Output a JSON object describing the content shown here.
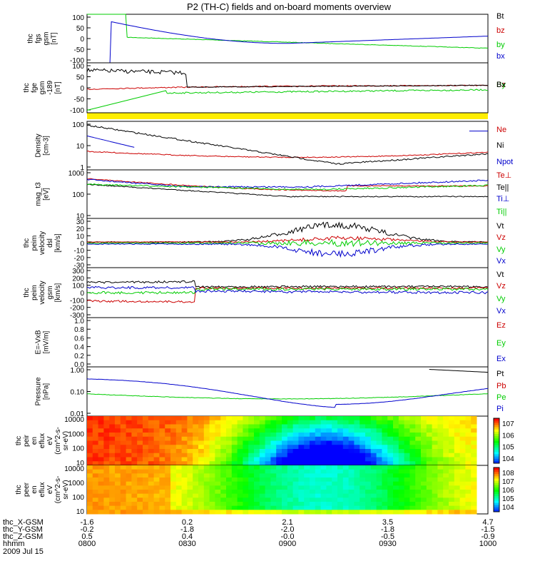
{
  "title": "P2 (TH-C) fields and on-board moments overview",
  "date_label": "2009 Jul 15",
  "colors": {
    "black": "#000000",
    "red": "#cc0000",
    "green": "#00cc00",
    "blue": "#0000cc",
    "yellow": "#ffee00"
  },
  "chart_data": [
    {
      "type": "line",
      "id": "fgs",
      "ylabel_lines": [
        "thc",
        "fgs",
        "gsm",
        "[nT]"
      ],
      "yticks": [
        "100",
        "50",
        "0",
        "-50",
        "-100"
      ],
      "ylim": [
        -100,
        100
      ],
      "series": [
        {
          "name": "Bt",
          "color": "black"
        },
        {
          "name": "bz",
          "color": "red"
        },
        {
          "name": "by",
          "color": "green"
        },
        {
          "name": "bx",
          "color": "blue"
        }
      ]
    },
    {
      "type": "line",
      "id": "fgs-hi",
      "ylabel_lines": [
        "thc",
        "fge",
        "gsm",
        "-189",
        "[nT]"
      ],
      "yticks": [
        "100",
        "50",
        "0",
        "-50",
        "-100"
      ],
      "ylim": [
        -125,
        100
      ],
      "series": [
        {
          "name": "Bz",
          "color": "red"
        },
        {
          "name": "By",
          "color": "green"
        },
        {
          "name": "Bx",
          "color": "black"
        }
      ]
    },
    {
      "type": "line",
      "id": "density",
      "ylabel_lines": [
        "Density",
        "[cm-3]"
      ],
      "yticks": [
        "100",
        "10",
        "1"
      ],
      "ylim": [
        0.3,
        200
      ],
      "log": true,
      "series": [
        {
          "name": "Ne",
          "color": "red"
        },
        {
          "name": "Ni",
          "color": "black"
        },
        {
          "name": "Npot",
          "color": "blue"
        }
      ]
    },
    {
      "type": "line",
      "id": "temp",
      "ylabel_lines": [
        "mag_t3",
        "[eV]"
      ],
      "yticks": [
        "1000",
        "100",
        "10"
      ],
      "ylim": [
        10,
        1500
      ],
      "log": true,
      "series": [
        {
          "name": "Te⊥",
          "color": "red"
        },
        {
          "name": "Te||",
          "color": "black"
        },
        {
          "name": "Ti⊥",
          "color": "blue"
        },
        {
          "name": "Ti||",
          "color": "green"
        }
      ]
    },
    {
      "type": "line",
      "id": "vel-dsl",
      "ylabel_lines": [
        "thc",
        "peim",
        "velocity",
        "dsl",
        "[km/s]"
      ],
      "yticks": [
        "30",
        "20",
        "10",
        "0",
        "-10",
        "-20",
        "-30"
      ],
      "ylim": [
        -30,
        30
      ],
      "series": [
        {
          "name": "Vt",
          "color": "black"
        },
        {
          "name": "Vz",
          "color": "red"
        },
        {
          "name": "Vy",
          "color": "green"
        },
        {
          "name": "Vx",
          "color": "blue"
        }
      ]
    },
    {
      "type": "line",
      "id": "vel-gsm",
      "ylabel_lines": [
        "thc",
        "peim",
        "velocity",
        "gsm",
        "[km/s]"
      ],
      "yticks": [
        "300",
        "200",
        "100",
        "0",
        "-100",
        "-200",
        "-300"
      ],
      "ylim": [
        -300,
        300
      ],
      "series": [
        {
          "name": "Vt",
          "color": "black"
        },
        {
          "name": "Vz",
          "color": "red"
        },
        {
          "name": "Vy",
          "color": "green"
        },
        {
          "name": "Vx",
          "color": "blue"
        }
      ]
    },
    {
      "type": "line",
      "id": "efield",
      "ylabel_lines": [
        "E=-VxB",
        "[mV/m]"
      ],
      "yticks": [
        "1.0",
        "0.8",
        "0.6",
        "0.4",
        "0.2",
        "0.0"
      ],
      "ylim": [
        0,
        1
      ],
      "series": [
        {
          "name": "Ez",
          "color": "red"
        },
        {
          "name": "Ey",
          "color": "green"
        },
        {
          "name": "Ex",
          "color": "blue"
        }
      ]
    },
    {
      "type": "line",
      "id": "pressure",
      "ylabel_lines": [
        "Pressure",
        "[nPa]"
      ],
      "yticks": [
        "1.00",
        "0.10",
        "0.01"
      ],
      "ylim": [
        0.005,
        6
      ],
      "log": true,
      "series": [
        {
          "name": "Pt",
          "color": "black"
        },
        {
          "name": "Pb",
          "color": "red"
        },
        {
          "name": "Pe",
          "color": "green"
        },
        {
          "name": "Pi",
          "color": "blue"
        }
      ]
    },
    {
      "type": "heatmap",
      "id": "peir",
      "ylabel_lines": [
        "thc",
        "peir",
        "en",
        "eflux",
        "eV",
        "(cm^2-s-",
        "sr-eV)"
      ],
      "yticks": [
        "10000",
        "1000",
        "100",
        "10"
      ],
      "colorbar_ticks": [
        "10^7",
        "10^6",
        "10^5",
        "10^4"
      ]
    },
    {
      "type": "heatmap",
      "id": "peer",
      "ylabel_lines": [
        "thc",
        "peer",
        "en",
        "eflux",
        "eV",
        "(cm^2-s-",
        "sr-eV)"
      ],
      "yticks": [
        "10000",
        "1000",
        "100",
        "10"
      ],
      "colorbar_ticks": [
        "10^8",
        "10^7",
        "10^6",
        "10^5",
        "10^4"
      ]
    }
  ],
  "x_axis": {
    "row_labels": [
      "thc_X-GSM",
      "thc_Y-GSM",
      "thc_Z-GSM",
      "hhmm"
    ],
    "columns": [
      [
        "-1.6",
        "-0.2",
        "0.5",
        "0800"
      ],
      [
        "0.2",
        "-1.8",
        "0.4",
        "0830"
      ],
      [
        "2.1",
        "-2.0",
        "-0.0",
        "0900"
      ],
      [
        "3.5",
        "-1.8",
        "-0.5",
        "0930"
      ],
      [
        "4.7",
        "-1.5",
        "-0.9",
        "1000"
      ]
    ]
  }
}
